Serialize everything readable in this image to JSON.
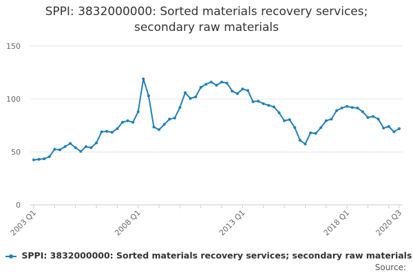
{
  "title_lines": [
    "SPPI: 3832000000: Sorted materials recovery services;",
    "secondary raw materials"
  ],
  "source_label": "Source:",
  "colors": {
    "series": "#1f7fb5",
    "grid": "#e6e6e6",
    "axis": "#cccccc",
    "tick_text": "#666666"
  },
  "chart_data": {
    "type": "line",
    "title": "SPPI: 3832000000: Sorted materials recovery services; secondary raw materials",
    "xlabel": "",
    "ylabel": "",
    "ylim": [
      0,
      150
    ],
    "yticks": [
      0,
      50,
      100,
      150
    ],
    "xticks": [
      {
        "label": "2003 Q1",
        "index": 0
      },
      {
        "label": "2008 Q1",
        "index": 20
      },
      {
        "label": "2013 Q1",
        "index": 40
      },
      {
        "label": "2018 Q1",
        "index": 60
      },
      {
        "label": "2020 Q3",
        "index": 70
      }
    ],
    "legend_position": "bottom",
    "grid": true,
    "categories": [
      "2003 Q1",
      "2003 Q2",
      "2003 Q3",
      "2003 Q4",
      "2004 Q1",
      "2004 Q2",
      "2004 Q3",
      "2004 Q4",
      "2005 Q1",
      "2005 Q2",
      "2005 Q3",
      "2005 Q4",
      "2006 Q1",
      "2006 Q2",
      "2006 Q3",
      "2006 Q4",
      "2007 Q1",
      "2007 Q2",
      "2007 Q3",
      "2007 Q4",
      "2008 Q1",
      "2008 Q2",
      "2008 Q3",
      "2008 Q4",
      "2009 Q1",
      "2009 Q2",
      "2009 Q3",
      "2009 Q4",
      "2010 Q1",
      "2010 Q2",
      "2010 Q3",
      "2010 Q4",
      "2011 Q1",
      "2011 Q2",
      "2011 Q3",
      "2011 Q4",
      "2012 Q1",
      "2012 Q2",
      "2012 Q3",
      "2012 Q4",
      "2013 Q1",
      "2013 Q2",
      "2013 Q3",
      "2013 Q4",
      "2014 Q1",
      "2014 Q2",
      "2014 Q3",
      "2014 Q4",
      "2015 Q1",
      "2015 Q2",
      "2015 Q3",
      "2015 Q4",
      "2016 Q1",
      "2016 Q2",
      "2016 Q3",
      "2016 Q4",
      "2017 Q1",
      "2017 Q2",
      "2017 Q3",
      "2017 Q4",
      "2018 Q1",
      "2018 Q2",
      "2018 Q3",
      "2018 Q4",
      "2019 Q1",
      "2019 Q2",
      "2019 Q3",
      "2019 Q4",
      "2020 Q1",
      "2020 Q2",
      "2020 Q3"
    ],
    "series": [
      {
        "name": "SPPI: 3832000000: Sorted materials recovery services; secondary raw materials",
        "values": [
          42.5,
          43,
          43.5,
          45.5,
          52.5,
          52,
          55,
          58,
          54,
          50.5,
          55,
          54,
          58.5,
          69,
          69.5,
          68.5,
          72,
          78,
          79.5,
          78,
          88,
          119,
          103,
          73.5,
          71,
          76,
          81,
          82,
          92,
          106,
          100.5,
          102,
          111,
          114,
          116,
          113,
          116,
          115,
          107.5,
          105,
          109.5,
          108,
          97.5,
          98,
          95.5,
          94,
          92.5,
          87,
          79.5,
          80.5,
          73,
          61,
          57.5,
          68,
          67.5,
          73,
          79.5,
          81,
          89,
          91.5,
          93,
          92,
          91.5,
          88,
          82.5,
          83.5,
          81,
          72.5,
          74,
          69,
          72
        ]
      }
    ]
  }
}
